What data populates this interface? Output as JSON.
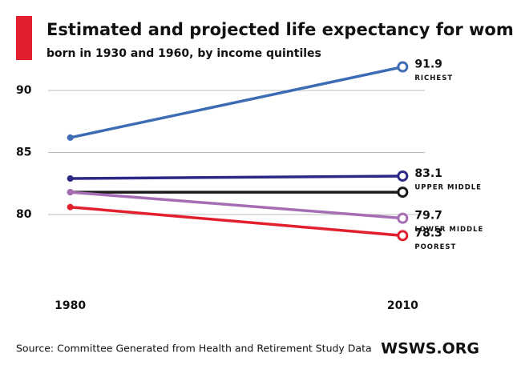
{
  "chart_data": {
    "type": "line",
    "title": "Estimated and projected life expectancy for women",
    "subtitle": "born in 1930 and 1960, by income quintiles",
    "x": [
      1980,
      2010
    ],
    "xlim": [
      1978,
      2012
    ],
    "xticks": [
      1980,
      2010
    ],
    "ylim": [
      75,
      93
    ],
    "yticks": [
      80,
      85,
      90
    ],
    "grid": true,
    "series": [
      {
        "name": "RICHEST",
        "color": "#3b6cb4",
        "values": [
          86.2,
          91.9
        ]
      },
      {
        "name": "UPPER MIDDLE",
        "color": "#2c2886",
        "values": [
          82.9,
          83.1
        ]
      },
      {
        "color": "#1a1a1a",
        "values": [
          81.8,
          81.8
        ]
      },
      {
        "name": "LOWER MIDDLE",
        "color": "#a56db4",
        "values": [
          81.8,
          79.7
        ]
      },
      {
        "name": "POOREST",
        "color": "#e11f2d",
        "values": [
          80.6,
          78.3
        ]
      }
    ],
    "source": "Source: Committee Generated from Health and Retirement Study Data",
    "logo": "WSWS.ORG"
  }
}
